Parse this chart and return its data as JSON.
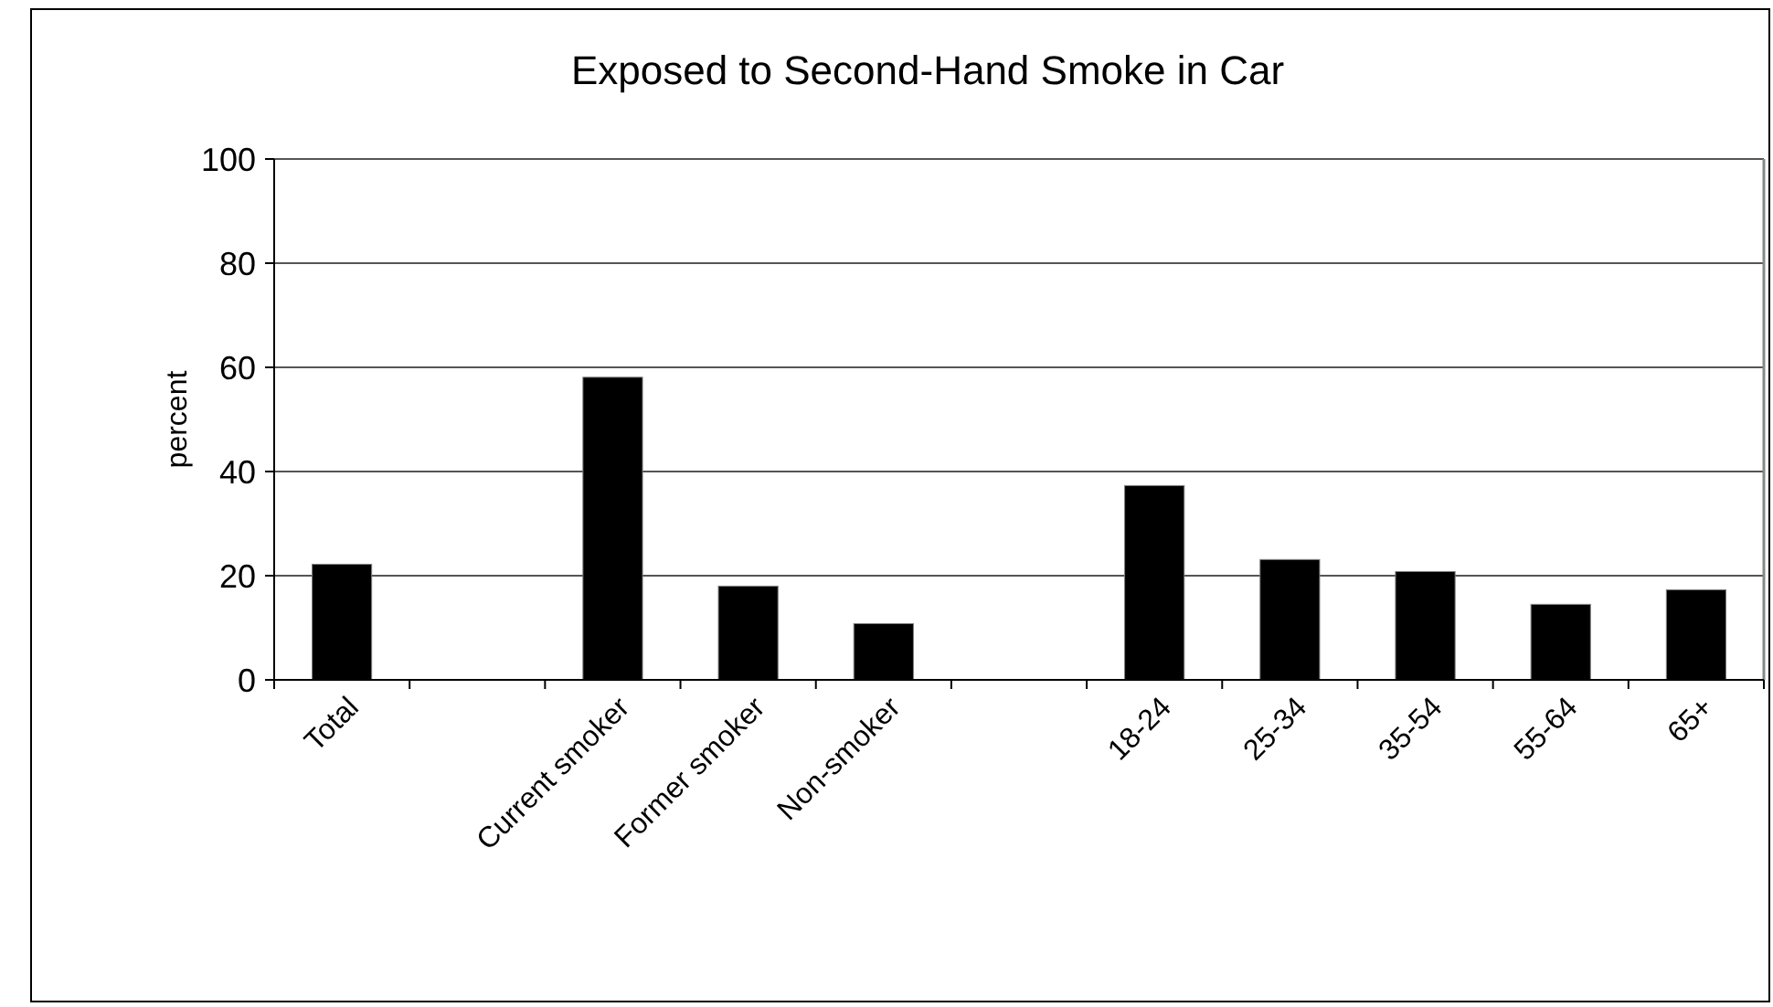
{
  "chart_data": {
    "type": "bar",
    "title": "Exposed to Second-Hand Smoke in Car",
    "ylabel": "percent",
    "categories": [
      "Total",
      null,
      "Current smoker",
      "Former smoker",
      "Non-smoker",
      null,
      "18-24",
      "25-34",
      "35-54",
      "55-64",
      "65+"
    ],
    "values": [
      22.2,
      null,
      58.1,
      18,
      10.8,
      null,
      37.3,
      23.1,
      20.8,
      14.5,
      17.3
    ],
    "color": "#000000",
    "ylim": [
      0,
      100
    ],
    "yticks": [
      0,
      20,
      40,
      60,
      80,
      100
    ],
    "grid": "y"
  }
}
